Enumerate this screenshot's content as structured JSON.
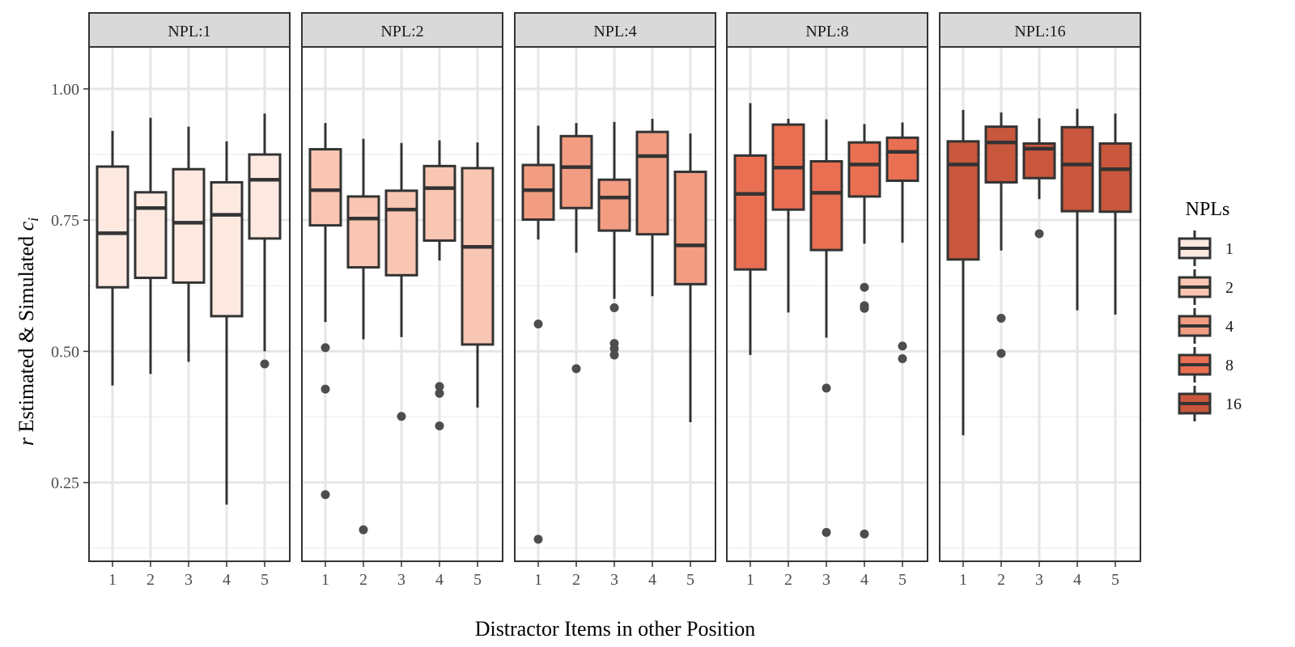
{
  "chart_data": {
    "type": "boxplot",
    "xlabel": "Distractor Items in other Position",
    "ylabel": "r Estimated & Simulated c_i",
    "ylabel_parts": {
      "r": "r",
      "middle": " Estimated & Simulated ",
      "c": "c",
      "sub": "i"
    },
    "ylim": [
      0.1,
      1.08
    ],
    "yticks": [
      0.25,
      0.5,
      0.75,
      1.0
    ],
    "ytick_labels": [
      "0.25",
      "0.50",
      "0.75",
      "1.00"
    ],
    "categories": [
      "1",
      "2",
      "3",
      "4",
      "5"
    ],
    "grid": true,
    "legend": {
      "title": "NPLs",
      "position": "right",
      "entries": [
        "1",
        "2",
        "4",
        "8",
        "16"
      ]
    },
    "facets": [
      {
        "strip": "NPL:1",
        "fill": "#FEE9E1",
        "boxes": [
          {
            "x": "1",
            "lower_whisker": 0.435,
            "q1": 0.622,
            "median": 0.725,
            "q3": 0.852,
            "upper_whisker": 0.92,
            "outliers": []
          },
          {
            "x": "2",
            "lower_whisker": 0.457,
            "q1": 0.64,
            "median": 0.773,
            "q3": 0.803,
            "upper_whisker": 0.945,
            "outliers": []
          },
          {
            "x": "3",
            "lower_whisker": 0.48,
            "q1": 0.631,
            "median": 0.745,
            "q3": 0.847,
            "upper_whisker": 0.928,
            "outliers": []
          },
          {
            "x": "4",
            "lower_whisker": 0.208,
            "q1": 0.567,
            "median": 0.76,
            "q3": 0.822,
            "upper_whisker": 0.9,
            "outliers": []
          },
          {
            "x": "5",
            "lower_whisker": 0.5,
            "q1": 0.715,
            "median": 0.827,
            "q3": 0.875,
            "upper_whisker": 0.953,
            "outliers": [
              0.476
            ]
          }
        ]
      },
      {
        "strip": "NPL:2",
        "fill": "#F8C6B2",
        "boxes": [
          {
            "x": "1",
            "lower_whisker": 0.556,
            "q1": 0.74,
            "median": 0.807,
            "q3": 0.885,
            "upper_whisker": 0.935,
            "outliers": [
              0.507,
              0.428,
              0.227
            ]
          },
          {
            "x": "2",
            "lower_whisker": 0.523,
            "q1": 0.66,
            "median": 0.753,
            "q3": 0.795,
            "upper_whisker": 0.905,
            "outliers": [
              0.16
            ]
          },
          {
            "x": "3",
            "lower_whisker": 0.527,
            "q1": 0.645,
            "median": 0.77,
            "q3": 0.806,
            "upper_whisker": 0.897,
            "outliers": [
              0.376
            ]
          },
          {
            "x": "4",
            "lower_whisker": 0.673,
            "q1": 0.711,
            "median": 0.811,
            "q3": 0.853,
            "upper_whisker": 0.902,
            "outliers": [
              0.433,
              0.42,
              0.358
            ]
          },
          {
            "x": "5",
            "lower_whisker": 0.393,
            "q1": 0.513,
            "median": 0.699,
            "q3": 0.849,
            "upper_whisker": 0.898,
            "outliers": []
          }
        ]
      },
      {
        "strip": "NPL:4",
        "fill": "#F29D82",
        "boxes": [
          {
            "x": "1",
            "lower_whisker": 0.713,
            "q1": 0.751,
            "median": 0.807,
            "q3": 0.855,
            "upper_whisker": 0.93,
            "outliers": [
              0.552,
              0.142
            ]
          },
          {
            "x": "2",
            "lower_whisker": 0.688,
            "q1": 0.773,
            "median": 0.851,
            "q3": 0.91,
            "upper_whisker": 0.935,
            "outliers": [
              0.467
            ]
          },
          {
            "x": "3",
            "lower_whisker": 0.6,
            "q1": 0.73,
            "median": 0.793,
            "q3": 0.827,
            "upper_whisker": 0.937,
            "outliers": [
              0.583,
              0.515,
              0.505,
              0.493
            ]
          },
          {
            "x": "4",
            "lower_whisker": 0.605,
            "q1": 0.723,
            "median": 0.872,
            "q3": 0.918,
            "upper_whisker": 0.943,
            "outliers": []
          },
          {
            "x": "5",
            "lower_whisker": 0.365,
            "q1": 0.628,
            "median": 0.702,
            "q3": 0.842,
            "upper_whisker": 0.915,
            "outliers": []
          }
        ]
      },
      {
        "strip": "NPL:8",
        "fill": "#E96F52",
        "boxes": [
          {
            "x": "1",
            "lower_whisker": 0.493,
            "q1": 0.656,
            "median": 0.8,
            "q3": 0.873,
            "upper_whisker": 0.973,
            "outliers": []
          },
          {
            "x": "2",
            "lower_whisker": 0.574,
            "q1": 0.77,
            "median": 0.85,
            "q3": 0.932,
            "upper_whisker": 0.943,
            "outliers": []
          },
          {
            "x": "3",
            "lower_whisker": 0.526,
            "q1": 0.693,
            "median": 0.802,
            "q3": 0.862,
            "upper_whisker": 0.942,
            "outliers": [
              0.43,
              0.155
            ]
          },
          {
            "x": "4",
            "lower_whisker": 0.705,
            "q1": 0.795,
            "median": 0.856,
            "q3": 0.898,
            "upper_whisker": 0.933,
            "outliers": [
              0.622,
              0.587,
              0.582,
              0.152
            ]
          },
          {
            "x": "5",
            "lower_whisker": 0.707,
            "q1": 0.825,
            "median": 0.88,
            "q3": 0.907,
            "upper_whisker": 0.936,
            "outliers": [
              0.51,
              0.486
            ]
          }
        ]
      },
      {
        "strip": "NPL:16",
        "fill": "#C8573D",
        "boxes": [
          {
            "x": "1",
            "lower_whisker": 0.34,
            "q1": 0.675,
            "median": 0.856,
            "q3": 0.9,
            "upper_whisker": 0.96,
            "outliers": []
          },
          {
            "x": "2",
            "lower_whisker": 0.692,
            "q1": 0.822,
            "median": 0.898,
            "q3": 0.928,
            "upper_whisker": 0.955,
            "outliers": [
              0.563,
              0.496
            ]
          },
          {
            "x": "3",
            "lower_whisker": 0.79,
            "q1": 0.83,
            "median": 0.886,
            "q3": 0.896,
            "upper_whisker": 0.944,
            "outliers": [
              0.724
            ]
          },
          {
            "x": "4",
            "lower_whisker": 0.578,
            "q1": 0.767,
            "median": 0.856,
            "q3": 0.927,
            "upper_whisker": 0.962,
            "outliers": []
          },
          {
            "x": "5",
            "lower_whisker": 0.57,
            "q1": 0.766,
            "median": 0.847,
            "q3": 0.896,
            "upper_whisker": 0.953,
            "outliers": []
          }
        ]
      }
    ]
  }
}
